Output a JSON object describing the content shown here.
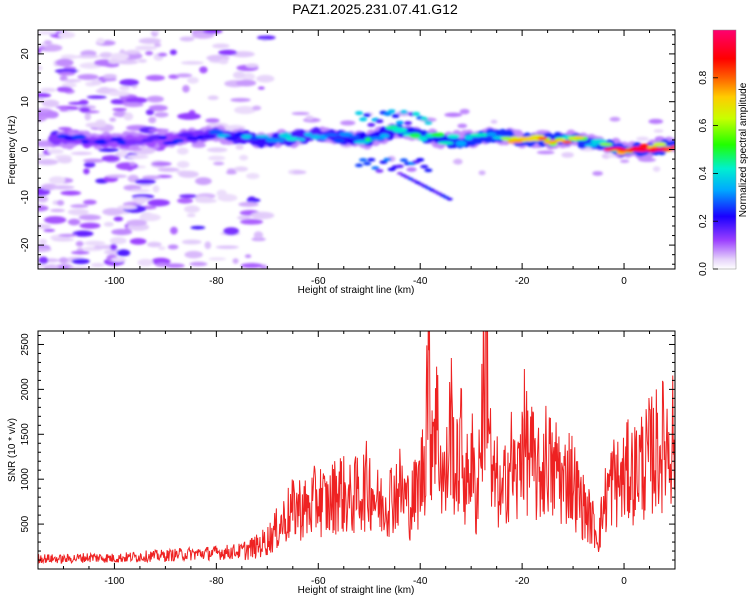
{
  "title": "PAZ1.2025.231.07.41.G12",
  "chart_data": [
    {
      "type": "heatmap",
      "xlabel": "Height of straight line (km)",
      "ylabel": "Frequency (Hz)",
      "xlim": [
        -115,
        10
      ],
      "ylim": [
        -25,
        25
      ],
      "xticks": [
        -100,
        -80,
        -60,
        -40,
        -20,
        0
      ],
      "yticks": [
        -20,
        -10,
        0,
        10,
        20
      ],
      "colorbar": {
        "label": "Normalized spectral amplitude",
        "range": [
          0.0,
          1.0
        ],
        "ticks": [
          0.0,
          0.2,
          0.4,
          0.6,
          0.8
        ],
        "colors": [
          "#e8d8f8",
          "#8a2be2",
          "#1400ff",
          "#00b4ff",
          "#00f0c0",
          "#30ff00",
          "#ffff00",
          "#ff8000",
          "#ff0000",
          "#ff0080"
        ]
      },
      "ridge": {
        "description_points_height_km": [
          -110,
          -100,
          -90,
          -80,
          -70,
          -60,
          -50,
          -45,
          -40,
          -35,
          -30,
          -25,
          -20,
          -15,
          -10,
          -5,
          0,
          5,
          10
        ],
        "center_frequency_hz": [
          2,
          2,
          2,
          3,
          2,
          3,
          2,
          4,
          3,
          2,
          2,
          3,
          2,
          2,
          2,
          1,
          0,
          0,
          1
        ],
        "peak_amplitude": [
          0.3,
          0.25,
          0.25,
          0.35,
          0.45,
          0.4,
          0.5,
          0.45,
          0.55,
          0.5,
          0.55,
          0.6,
          0.7,
          0.75,
          0.7,
          0.6,
          0.9,
          0.95,
          0.85
        ]
      }
    },
    {
      "type": "line",
      "xlabel": "Height of straight line (km)",
      "ylabel": "SNR (10 * v/v)",
      "xlim": [
        -115,
        10
      ],
      "ylim": [
        0,
        2650
      ],
      "xticks": [
        -100,
        -80,
        -60,
        -40,
        -20,
        0
      ],
      "yticks": [
        500,
        1000,
        1500,
        2000,
        2500
      ],
      "series": [
        {
          "name": "SNR",
          "color": "#ee2222",
          "x": [
            -115,
            -110,
            -105,
            -100,
            -95,
            -90,
            -85,
            -80,
            -75,
            -72,
            -70,
            -68,
            -66,
            -64,
            -62,
            -60,
            -58,
            -56,
            -54,
            -52,
            -50,
            -48,
            -46,
            -44,
            -42,
            -40,
            -39,
            -38.5,
            -38,
            -37,
            -36,
            -35,
            -34,
            -33,
            -32,
            -31,
            -30,
            -29,
            -28,
            -27.5,
            -27,
            -26.5,
            -26,
            -25,
            -24,
            -23,
            -22,
            -21,
            -20,
            -19,
            -18,
            -17,
            -16,
            -15,
            -14,
            -13,
            -12,
            -11,
            -10,
            -9,
            -8,
            -7,
            -6,
            -5,
            -4,
            -3,
            -2,
            -1,
            0,
            1,
            2,
            3,
            4,
            5,
            6,
            7,
            8,
            9,
            10
          ],
          "y": [
            120,
            110,
            130,
            120,
            140,
            150,
            170,
            180,
            200,
            250,
            320,
            450,
            600,
            700,
            650,
            800,
            700,
            900,
            750,
            850,
            950,
            700,
            800,
            900,
            700,
            950,
            1300,
            2600,
            1500,
            1800,
            1200,
            900,
            1700,
            1000,
            1400,
            900,
            1300,
            700,
            1600,
            2000,
            2650,
            1800,
            900,
            1000,
            700,
            1100,
            1200,
            900,
            1550,
            1300,
            1200,
            1000,
            1100,
            1300,
            1000,
            1200,
            900,
            1100,
            1000,
            800,
            700,
            600,
            500,
            350,
            700,
            900,
            1000,
            950,
            1000,
            1100,
            1050,
            1200,
            1150,
            1250,
            1300,
            1350,
            1400,
            1450,
            1550
          ]
        }
      ]
    }
  ]
}
